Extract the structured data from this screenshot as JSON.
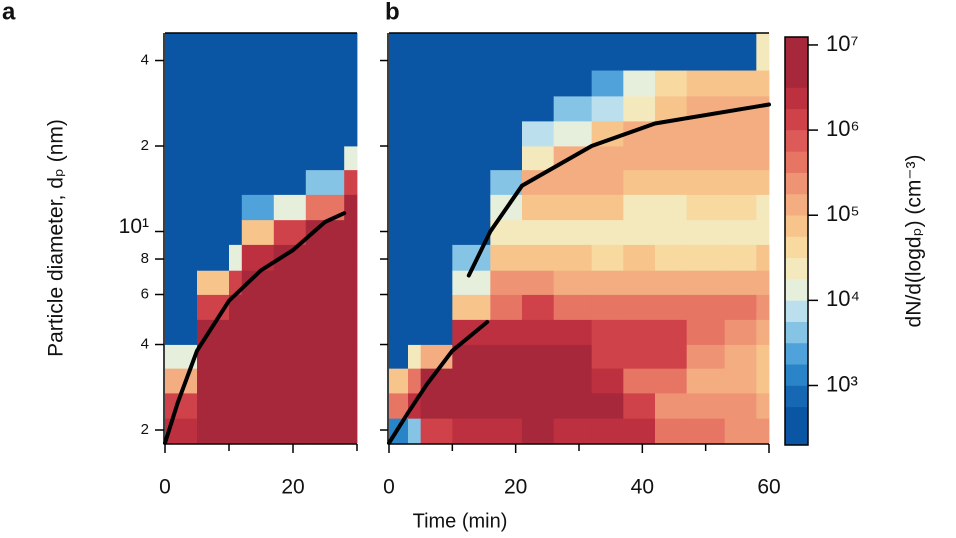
{
  "chart_data": [
    {
      "type": "heatmap",
      "panel_label": "a",
      "ylabel": "Particle diameter, dₚ (nm)",
      "xbins": [
        0,
        5,
        10,
        12,
        17,
        22,
        28,
        30
      ],
      "ybins": [
        1.8,
        2.2,
        2.7,
        3.3,
        4,
        4.9,
        6,
        7.3,
        9,
        11,
        13.5,
        16.5,
        20,
        24.5,
        30,
        37,
        50
      ],
      "values": [
        [
          2000000,
          1200000,
          130000,
          13000,
          300,
          300,
          300,
          300,
          300,
          300,
          300,
          300,
          300,
          300,
          300,
          300
        ],
        [
          5000000,
          5000000,
          5000000,
          5000000,
          5000000,
          1200000,
          70000,
          300,
          300,
          300,
          300,
          300,
          300,
          300,
          300,
          300
        ],
        [
          5000000,
          5000000,
          5000000,
          5000000,
          5000000,
          5000000,
          1200000,
          13000,
          300,
          300,
          300,
          300,
          300,
          300,
          300,
          300
        ],
        [
          5000000,
          5000000,
          5000000,
          5000000,
          5000000,
          5000000,
          5000000,
          2000000,
          70000,
          2500,
          300,
          300,
          300,
          300,
          300,
          300
        ],
        [
          5000000,
          5000000,
          5000000,
          5000000,
          5000000,
          5000000,
          5000000,
          5000000,
          1200000,
          13000,
          300,
          300,
          300,
          300,
          300,
          300
        ],
        [
          5000000,
          5000000,
          5000000,
          5000000,
          5000000,
          5000000,
          5000000,
          5000000,
          5000000,
          450000,
          4000,
          300,
          300,
          300,
          300,
          300
        ],
        [
          5000000,
          5000000,
          5000000,
          5000000,
          5000000,
          5000000,
          5000000,
          5000000,
          5000000,
          5000000,
          1200000,
          13000,
          300,
          300,
          300,
          300
        ]
      ],
      "curves": [
        {
          "color": "#000000",
          "x": [
            0,
            2,
            5,
            10,
            15,
            20,
            25,
            28
          ],
          "y": [
            1.8,
            2.5,
            3.8,
            5.7,
            7.3,
            8.6,
            10.8,
            11.6
          ]
        }
      ],
      "xlim": [
        0,
        30
      ],
      "xticks": [
        0,
        20
      ],
      "xminor": [
        10,
        30
      ],
      "ylim": [
        1.8,
        50
      ],
      "yscale": "log",
      "yticks": [
        2,
        4,
        6,
        8,
        {
          "value": 10,
          "label": "10¹"
        },
        {
          "value": 20,
          "label": "2"
        },
        {
          "value": 40,
          "label": "4"
        }
      ]
    },
    {
      "type": "heatmap",
      "panel_label": "b",
      "xlabel": "Time (min)",
      "xbins": [
        0,
        3,
        5,
        10,
        16,
        21,
        26,
        32,
        37,
        42,
        47,
        53,
        58,
        60
      ],
      "ybins": [
        1.8,
        2.2,
        2.7,
        3.3,
        4,
        4.9,
        6,
        7.3,
        9,
        11,
        13.5,
        16.5,
        20,
        24.5,
        30,
        37,
        50
      ],
      "values": [
        [
          1200,
          450000,
          70000,
          300,
          300,
          300,
          300,
          300,
          300,
          300,
          300,
          300,
          300,
          300,
          300,
          300
        ],
        [
          4000,
          2000000,
          450000,
          25000,
          300,
          300,
          300,
          300,
          300,
          300,
          300,
          300,
          300,
          300,
          300,
          300
        ],
        [
          1200000,
          5000000,
          5000000,
          130000,
          300,
          300,
          300,
          300,
          300,
          300,
          300,
          300,
          300,
          300,
          300,
          300
        ],
        [
          2000000,
          5000000,
          5000000,
          5000000,
          2000000,
          70000,
          13000,
          4000,
          300,
          300,
          300,
          300,
          300,
          300,
          300,
          300
        ],
        [
          2000000,
          5000000,
          5000000,
          5000000,
          2000000,
          450000,
          250000,
          70000,
          25000,
          13000,
          4000,
          300,
          300,
          300,
          300,
          300
        ],
        [
          5000000,
          5000000,
          5000000,
          5000000,
          2000000,
          1200000,
          250000,
          70000,
          25000,
          70000,
          130000,
          25000,
          7000,
          300,
          300,
          300
        ],
        [
          2000000,
          5000000,
          5000000,
          5000000,
          2000000,
          450000,
          130000,
          70000,
          25000,
          70000,
          130000,
          130000,
          13000,
          4000,
          300,
          300
        ],
        [
          3000000,
          5000000,
          2000000,
          1200000,
          1200000,
          450000,
          130000,
          40000,
          25000,
          70000,
          130000,
          130000,
          70000,
          7000,
          2500,
          300
        ],
        [
          2000000,
          1200000,
          450000,
          1200000,
          1200000,
          450000,
          130000,
          70000,
          25000,
          25000,
          70000,
          130000,
          130000,
          25000,
          13000,
          300
        ],
        [
          450000,
          250000,
          450000,
          1200000,
          1200000,
          450000,
          130000,
          40000,
          25000,
          25000,
          70000,
          130000,
          130000,
          70000,
          40000,
          300
        ],
        [
          450000,
          250000,
          130000,
          250000,
          450000,
          450000,
          130000,
          40000,
          25000,
          40000,
          70000,
          130000,
          130000,
          130000,
          70000,
          300
        ],
        [
          250000,
          250000,
          130000,
          130000,
          250000,
          450000,
          130000,
          40000,
          25000,
          40000,
          70000,
          130000,
          130000,
          130000,
          70000,
          300
        ],
        [
          250000,
          130000,
          70000,
          70000,
          130000,
          250000,
          130000,
          70000,
          25000,
          25000,
          70000,
          130000,
          130000,
          130000,
          70000,
          25000
        ]
      ],
      "curves": [
        {
          "color": "#000000",
          "x": [
            0,
            3,
            6,
            10,
            15.5
          ],
          "y": [
            1.8,
            2.3,
            2.9,
            3.8,
            4.8
          ]
        },
        {
          "color": "#000000",
          "x": [
            12.6,
            16,
            21,
            32,
            42,
            60
          ],
          "y": [
            7,
            10,
            14.5,
            20,
            24,
            28
          ]
        }
      ],
      "xlim": [
        0,
        60
      ],
      "xticks": [
        0,
        20,
        40,
        60
      ],
      "xminor": [
        10,
        30,
        50
      ],
      "ylim": [
        1.8,
        50
      ],
      "yscale": "log",
      "ytickmarks": [
        2,
        4,
        6,
        8,
        10,
        20,
        40
      ]
    },
    {
      "type": "colorbar",
      "label": "dN/d(logdₚ) (cm⁻³)",
      "scale": "log",
      "bounds": [
        200,
        562,
        1000,
        1778,
        3162,
        5623,
        10000,
        17783,
        31623,
        56234,
        100000,
        177828,
        316228,
        562341,
        1000000,
        1778279,
        3162278,
        12400000
      ],
      "colors": [
        "#0b56a4",
        "#1668b5",
        "#2a84c8",
        "#4fa3da",
        "#86c4e6",
        "#bcdfee",
        "#e6efdc",
        "#f3e9bd",
        "#f8d9a0",
        "#f7c48c",
        "#f3ad80",
        "#ee9373",
        "#e67564",
        "#dc5a58",
        "#cf4249",
        "#bd303f",
        "#a6283a"
      ],
      "ticks": [
        {
          "value": 1000,
          "label": "10³"
        },
        {
          "value": 10000,
          "label": "10⁴"
        },
        {
          "value": 100000,
          "label": "10⁵"
        },
        {
          "value": 1000000,
          "label": "10⁶"
        },
        {
          "value": 10000000,
          "label": "10⁷"
        }
      ]
    }
  ]
}
